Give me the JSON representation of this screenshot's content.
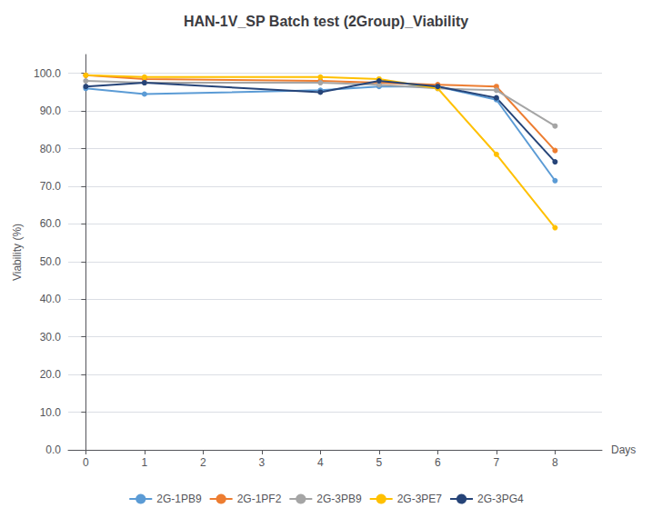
{
  "chart_data": {
    "type": "line",
    "title": "HAN-1V_SP Batch test (2Group)_Viability",
    "xlabel": "Days",
    "ylabel": "Viability (%)",
    "x": [
      0,
      1,
      4,
      5,
      6,
      7,
      8
    ],
    "series": [
      {
        "name": "2G-1PB9",
        "color": "#5B9BD5",
        "marker": "circle",
        "values": [
          96.0,
          94.5,
          95.5,
          96.5,
          96.5,
          93.0,
          71.5
        ]
      },
      {
        "name": "2G-1PF2",
        "color": "#ED7D31",
        "marker": "circle",
        "values": [
          99.5,
          98.5,
          98.0,
          97.5,
          97.0,
          96.5,
          79.5
        ]
      },
      {
        "name": "2G-3PB9",
        "color": "#A5A5A5",
        "marker": "circle",
        "values": [
          98.0,
          97.5,
          97.5,
          97.0,
          96.0,
          95.5,
          86.0
        ]
      },
      {
        "name": "2G-3PE7",
        "color": "#FFC000",
        "marker": "circle",
        "values": [
          99.5,
          99.0,
          99.0,
          98.5,
          96.0,
          78.5,
          59.0
        ]
      },
      {
        "name": "2G-3PG4",
        "color": "#264478",
        "marker": "circle",
        "values": [
          96.5,
          97.5,
          95.0,
          98.0,
          96.5,
          93.5,
          76.5
        ]
      }
    ],
    "xlim": [
      -0.3,
      8.8
    ],
    "xticks": [
      0,
      1,
      2,
      3,
      4,
      5,
      6,
      7,
      8
    ],
    "ylim": [
      0,
      105
    ],
    "yticks": [
      {
        "value": 0,
        "label": "0.0"
      },
      {
        "value": 10,
        "label": "10.0"
      },
      {
        "value": 20,
        "label": "20.0"
      },
      {
        "value": 30,
        "label": "30.0"
      },
      {
        "value": 40,
        "label": "40.0"
      },
      {
        "value": 50,
        "label": "50.0"
      },
      {
        "value": 60,
        "label": "60.0"
      },
      {
        "value": 70,
        "label": "70.0"
      },
      {
        "value": 80,
        "label": "80.0"
      },
      {
        "value": 90,
        "label": "90.0"
      },
      {
        "value": 100,
        "label": "100.0"
      }
    ],
    "grid": true,
    "legend": "bottom"
  }
}
